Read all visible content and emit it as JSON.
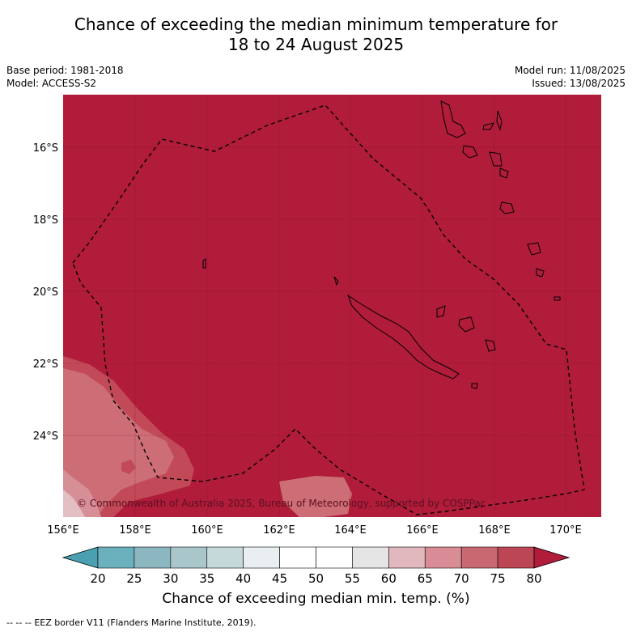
{
  "title": {
    "line1": "Chance of exceeding the median minimum temperature for",
    "line2": "18 to 24 August 2025"
  },
  "meta": {
    "base_period": "Base period: 1981-2018",
    "model": "Model: ACCESS-S2",
    "model_run": "Model run: 11/08/2025",
    "issued": "Issued: 13/08/2025"
  },
  "map": {
    "lon_range": [
      156,
      171
    ],
    "lat_range": [
      -26.3,
      -14.7
    ],
    "lon_ticks": [
      "156°E",
      "158°E",
      "160°E",
      "162°E",
      "164°E",
      "166°E",
      "168°E",
      "170°E"
    ],
    "lat_ticks": [
      "16°S",
      "18°S",
      "20°S",
      "22°S",
      "24°S"
    ],
    "background_category": "above 80",
    "copyright": "© Commonwealth of Australia 2025, Bureau of Meteorology, supported by COSPPac"
  },
  "colorbar": {
    "labels": [
      "20",
      "25",
      "30",
      "35",
      "40",
      "45",
      "50",
      "55",
      "60",
      "65",
      "70",
      "75",
      "80"
    ],
    "colors": [
      "#4aa0b0",
      "#6bb0bd",
      "#8cb7c0",
      "#a9c6ca",
      "#c5d8da",
      "#e9eff1",
      "#ffffff",
      "#ffffff",
      "#e5e5e5",
      "#e0b8bd",
      "#d88c95",
      "#c86870",
      "#bd4654",
      "#b01c3a"
    ],
    "title": "Chance of exceeding median min. temp. (%)"
  },
  "legend": {
    "marker": "--  --  --",
    "eez": "EEZ border V11 (Flanders Marine Institute, 2019)."
  },
  "colors": {
    "dark_red": "#b01c3a",
    "red_75": "#c24a58",
    "pink_70": "#cd6e77",
    "pink_65": "#d78f97",
    "pink_60": "#e3bfc4"
  }
}
